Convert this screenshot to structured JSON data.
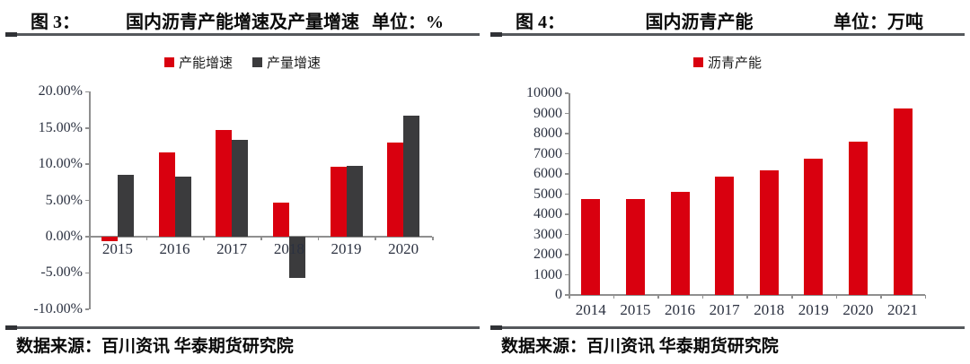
{
  "colors": {
    "red": "#D9000F",
    "dark": "#3B3B3D",
    "axis": "#8F8F8F",
    "rule": "#55585C",
    "rule_accent": "#303236",
    "tick_text": "#2B3140",
    "title_text": "#0A0A0A"
  },
  "panels": [
    {
      "fig_label": "图 3：",
      "source": "数据来源：百川资讯 华泰期货研究院"
    },
    {
      "fig_label": "图 4：",
      "source": "数据来源：百川资讯 华泰期货研究院"
    }
  ],
  "chart_data": [
    {
      "type": "bar",
      "title": "国内沥青产能增速及产量增速",
      "unit": "单位：%",
      "categories": [
        "2015",
        "2016",
        "2017",
        "2018",
        "2019",
        "2020"
      ],
      "series": [
        {
          "name": "产能增速",
          "color_key": "red",
          "values": [
            -0.6,
            11.6,
            14.7,
            4.7,
            9.6,
            13.0
          ]
        },
        {
          "name": "产量增速",
          "color_key": "dark",
          "values": [
            8.5,
            8.3,
            13.4,
            -5.7,
            9.8,
            16.7
          ]
        }
      ],
      "ylim": [
        -10,
        20
      ],
      "ytick_step": 5,
      "ytick_format": "percent2",
      "grid": false,
      "legend_position": "top"
    },
    {
      "type": "bar",
      "title": "国内沥青产能",
      "unit": "单位：万吨",
      "categories": [
        "2014",
        "2015",
        "2016",
        "2017",
        "2018",
        "2019",
        "2020",
        "2021"
      ],
      "series": [
        {
          "name": "沥青产能",
          "color_key": "red",
          "values": [
            4750,
            4750,
            5100,
            5850,
            6200,
            6750,
            7600,
            9250
          ]
        }
      ],
      "ylim": [
        0,
        10000
      ],
      "ytick_step": 1000,
      "ytick_format": "int",
      "grid": false,
      "legend_position": "top"
    }
  ]
}
